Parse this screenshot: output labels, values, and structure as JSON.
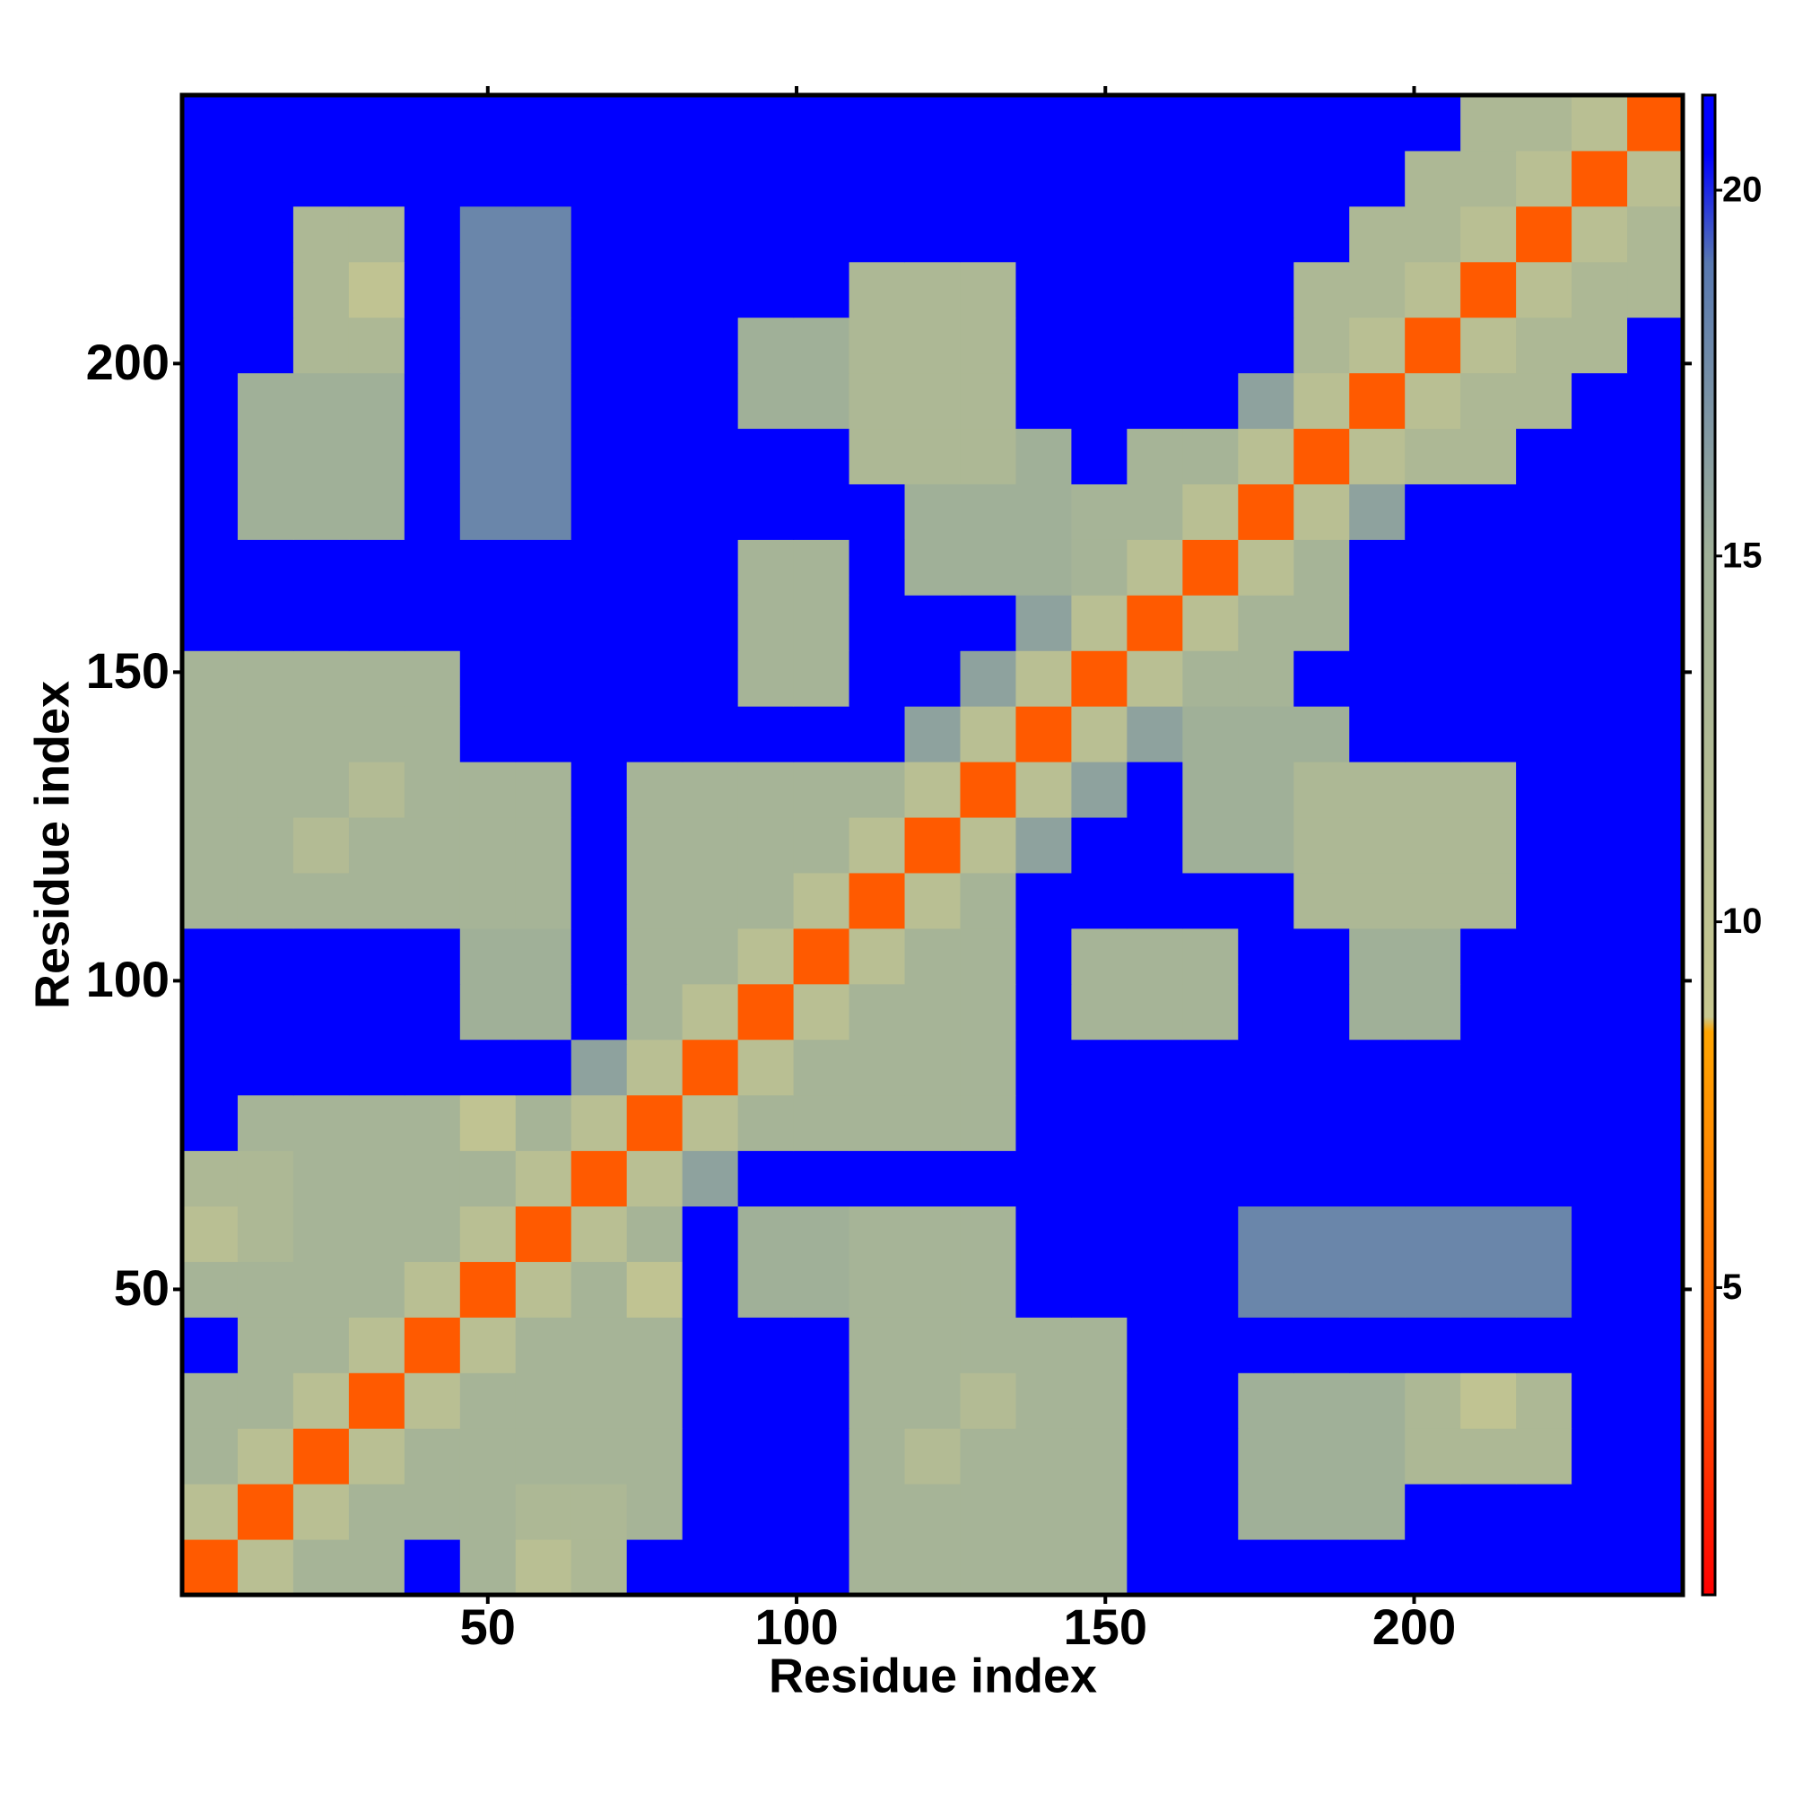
{
  "chart_data": {
    "type": "heatmap",
    "xlabel": "Residue index",
    "ylabel": "Residue index",
    "bins": [
      0.5,
      9.5,
      18.5,
      27.5,
      36.5,
      45.5,
      54.5,
      63.5,
      72.5,
      81.5,
      90.5,
      99.5,
      108.5,
      117.5,
      126.5,
      135.5,
      144.5,
      153.5,
      162.5,
      171.5,
      180.5,
      189.5,
      198.5,
      207.5,
      216.5,
      225.5,
      234.5,
      243.5
    ],
    "xlim": [
      0.5,
      243.5
    ],
    "ylim": [
      0.5,
      243.5
    ],
    "xticks": [
      50,
      100,
      150,
      200
    ],
    "yticks": [
      50,
      100,
      150,
      200
    ],
    "colorbar": {
      "lim": [
        0.8,
        21.3
      ],
      "ticks": [
        5,
        10,
        15,
        20
      ]
    },
    "colorscale": [
      [
        0.8,
        "#ff0000"
      ],
      [
        4,
        "#ff5a00"
      ],
      [
        8.5,
        "#ffa500"
      ],
      [
        8.7,
        "#c8c890"
      ],
      [
        15,
        "#a0b098"
      ],
      [
        19,
        "#5878b0"
      ],
      [
        20.5,
        "#0000ff"
      ]
    ],
    "values": [
      [
        4,
        11,
        14,
        14,
        21,
        14,
        11,
        13,
        21,
        21,
        21,
        21,
        14,
        14,
        14,
        14,
        14,
        21,
        21,
        21,
        21,
        21,
        21,
        21,
        21,
        21,
        21
      ],
      [
        11,
        4,
        11,
        14,
        14,
        14,
        13,
        13,
        14,
        21,
        21,
        21,
        14,
        14,
        14,
        14,
        14,
        21,
        21,
        15,
        15,
        15,
        21,
        21,
        21,
        21,
        21
      ],
      [
        14,
        11,
        4,
        11,
        14,
        14,
        14,
        14,
        14,
        21,
        21,
        21,
        14,
        12,
        14,
        14,
        14,
        21,
        21,
        15,
        15,
        15,
        13,
        13,
        13,
        21,
        21
      ],
      [
        14,
        14,
        11,
        4,
        11,
        14,
        14,
        14,
        14,
        21,
        21,
        21,
        14,
        14,
        12,
        14,
        14,
        21,
        21,
        15,
        15,
        15,
        13,
        10,
        13,
        21,
        21
      ],
      [
        21,
        14,
        14,
        11,
        4,
        11,
        14,
        14,
        14,
        21,
        21,
        21,
        14,
        14,
        14,
        14,
        14,
        21,
        21,
        21,
        21,
        21,
        21,
        21,
        21,
        21,
        21
      ],
      [
        14,
        14,
        14,
        14,
        11,
        4,
        11,
        14,
        10,
        21,
        15,
        15,
        14,
        14,
        14,
        21,
        21,
        21,
        21,
        18,
        18,
        18,
        18,
        18,
        18,
        21,
        21
      ],
      [
        11,
        13,
        14,
        14,
        14,
        11,
        4,
        11,
        14,
        21,
        15,
        15,
        14,
        14,
        14,
        21,
        21,
        21,
        21,
        18,
        18,
        18,
        18,
        18,
        18,
        21,
        21
      ],
      [
        13,
        13,
        14,
        14,
        14,
        14,
        11,
        4,
        11,
        16,
        21,
        21,
        21,
        21,
        21,
        21,
        21,
        21,
        21,
        21,
        21,
        21,
        21,
        21,
        21,
        21,
        21
      ],
      [
        21,
        14,
        14,
        14,
        14,
        10,
        14,
        11,
        4,
        11,
        14,
        14,
        14,
        14,
        14,
        21,
        21,
        21,
        21,
        21,
        21,
        21,
        21,
        21,
        21,
        21,
        21
      ],
      [
        21,
        21,
        21,
        21,
        21,
        21,
        21,
        16,
        11,
        4,
        11,
        14,
        14,
        14,
        14,
        21,
        21,
        21,
        21,
        21,
        21,
        21,
        21,
        21,
        21,
        21,
        21
      ],
      [
        21,
        21,
        21,
        21,
        21,
        15,
        15,
        21,
        14,
        11,
        4,
        11,
        14,
        14,
        14,
        21,
        14,
        14,
        14,
        21,
        21,
        15,
        15,
        21,
        21,
        21,
        21
      ],
      [
        21,
        21,
        21,
        21,
        21,
        15,
        15,
        21,
        14,
        14,
        11,
        4,
        11,
        14,
        14,
        21,
        14,
        14,
        14,
        21,
        21,
        15,
        15,
        21,
        21,
        21,
        21
      ],
      [
        14,
        14,
        14,
        14,
        14,
        14,
        14,
        21,
        14,
        14,
        14,
        11,
        4,
        11,
        14,
        21,
        21,
        21,
        21,
        21,
        13,
        13,
        13,
        13,
        21,
        21,
        21
      ],
      [
        14,
        14,
        12,
        14,
        14,
        14,
        14,
        21,
        14,
        14,
        14,
        14,
        11,
        4,
        11,
        16,
        21,
        21,
        15,
        15,
        13,
        13,
        13,
        13,
        21,
        21,
        21
      ],
      [
        14,
        14,
        14,
        12,
        14,
        14,
        14,
        21,
        14,
        14,
        14,
        14,
        14,
        11,
        4,
        11,
        16,
        21,
        15,
        15,
        13,
        13,
        13,
        13,
        21,
        21,
        21
      ],
      [
        14,
        14,
        14,
        14,
        14,
        21,
        21,
        21,
        21,
        21,
        21,
        21,
        21,
        16,
        11,
        4,
        11,
        16,
        15,
        15,
        15,
        21,
        21,
        21,
        21,
        21,
        21
      ],
      [
        14,
        14,
        14,
        14,
        14,
        21,
        21,
        21,
        21,
        21,
        14,
        14,
        21,
        21,
        16,
        11,
        4,
        11,
        14,
        14,
        21,
        21,
        21,
        21,
        21,
        21,
        21
      ],
      [
        21,
        21,
        21,
        21,
        21,
        21,
        21,
        21,
        21,
        21,
        14,
        14,
        21,
        21,
        21,
        16,
        11,
        4,
        11,
        14,
        14,
        21,
        21,
        21,
        21,
        21,
        21
      ],
      [
        21,
        21,
        21,
        21,
        21,
        21,
        21,
        21,
        21,
        21,
        14,
        14,
        21,
        15,
        15,
        15,
        14,
        11,
        4,
        11,
        14,
        21,
        21,
        21,
        21,
        21,
        21
      ],
      [
        21,
        15,
        15,
        15,
        21,
        18,
        18,
        21,
        21,
        21,
        21,
        21,
        21,
        15,
        15,
        15,
        14,
        14,
        11,
        4,
        11,
        16,
        21,
        21,
        21,
        21,
        21
      ],
      [
        21,
        15,
        15,
        15,
        21,
        18,
        18,
        21,
        21,
        21,
        21,
        21,
        13,
        13,
        13,
        15,
        21,
        14,
        14,
        11,
        4,
        11,
        13,
        13,
        21,
        21,
        21
      ],
      [
        21,
        15,
        15,
        15,
        21,
        18,
        18,
        21,
        21,
        21,
        15,
        15,
        13,
        13,
        13,
        21,
        21,
        21,
        21,
        16,
        11,
        4,
        11,
        13,
        13,
        21,
        21
      ],
      [
        21,
        21,
        13,
        13,
        21,
        18,
        18,
        21,
        21,
        21,
        15,
        15,
        13,
        13,
        13,
        21,
        21,
        21,
        21,
        21,
        13,
        11,
        4,
        11,
        13,
        13,
        21
      ],
      [
        21,
        21,
        13,
        10,
        21,
        18,
        18,
        21,
        21,
        21,
        21,
        21,
        13,
        13,
        13,
        21,
        21,
        21,
        21,
        21,
        13,
        13,
        11,
        4,
        11,
        13,
        13
      ],
      [
        21,
        21,
        13,
        13,
        21,
        18,
        18,
        21,
        21,
        21,
        21,
        21,
        21,
        21,
        21,
        21,
        21,
        21,
        21,
        21,
        21,
        13,
        13,
        11,
        4,
        11,
        13
      ],
      [
        21,
        21,
        21,
        21,
        21,
        21,
        21,
        21,
        21,
        21,
        21,
        21,
        21,
        21,
        21,
        21,
        21,
        21,
        21,
        21,
        21,
        21,
        13,
        13,
        11,
        4,
        11
      ],
      [
        21,
        21,
        21,
        21,
        21,
        21,
        21,
        21,
        21,
        21,
        21,
        21,
        21,
        21,
        21,
        21,
        21,
        21,
        21,
        21,
        21,
        21,
        21,
        13,
        13,
        11,
        4
      ]
    ]
  }
}
